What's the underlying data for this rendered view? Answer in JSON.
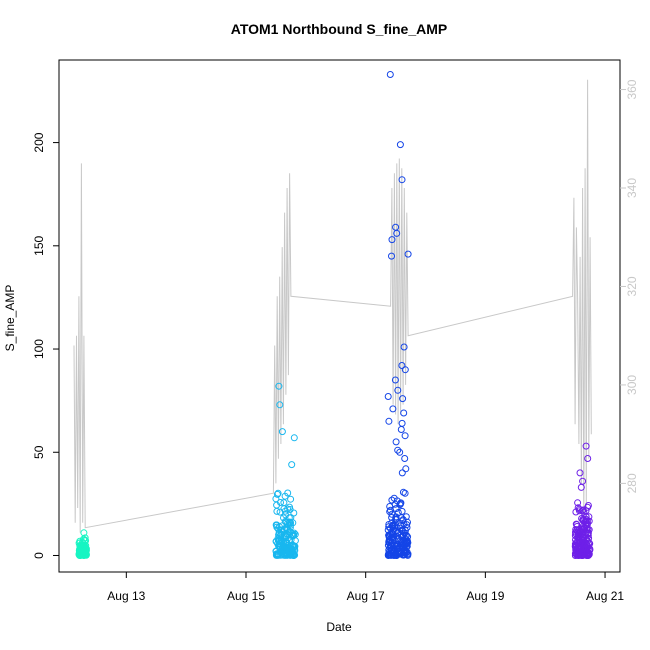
{
  "chart_data": {
    "type": "scatter",
    "title": "ATOM1 Northbound S_fine_AMP",
    "xlabel": "Date",
    "ylabel": "S_fine_AMP",
    "y2label": "",
    "xlim": [
      "2021-08-11T21:00",
      "2021-08-21T06:00"
    ],
    "ylim": [
      -8,
      240
    ],
    "y2lim": [
      262,
      366
    ],
    "x_ticks": [
      {
        "date": "2021-08-13",
        "label": "Aug 13"
      },
      {
        "date": "2021-08-15",
        "label": "Aug 15"
      },
      {
        "date": "2021-08-17",
        "label": "Aug 17"
      },
      {
        "date": "2021-08-19",
        "label": "Aug 19"
      },
      {
        "date": "2021-08-21",
        "label": "Aug 21"
      }
    ],
    "y_ticks": [
      0,
      50,
      100,
      150,
      200
    ],
    "y2_ticks": [
      280,
      300,
      320,
      340,
      360
    ],
    "y2_color": "#c8c8c8",
    "line_color": "#c8c8c8",
    "grid": false,
    "legend": "none",
    "clusters": [
      {
        "start": "2021-08-12T05:00",
        "end": "2021-08-12T08:00",
        "color": "#17f5c3",
        "ymin": 0,
        "ymax": 10,
        "extra": [
          11
        ]
      },
      {
        "start": "2021-08-15T12:00",
        "end": "2021-08-15T20:00",
        "color": "#19b7ef",
        "ymin": 0,
        "ymax": 33,
        "extra": [
          44,
          57,
          60,
          73,
          82
        ]
      },
      {
        "start": "2021-08-17T09:00",
        "end": "2021-08-17T17:00",
        "color": "#1445e7",
        "ymin": 0,
        "ymax": 33,
        "extra": [
          233,
          199,
          182,
          159,
          156,
          153,
          146,
          145,
          101,
          92,
          90,
          85,
          80,
          77,
          76,
          71,
          69,
          65,
          64,
          61,
          58,
          55,
          51,
          50,
          47,
          42,
          40
        ]
      },
      {
        "start": "2021-08-20T12:00",
        "end": "2021-08-20T18:00",
        "color": "#6e20e8",
        "ymin": 0,
        "ymax": 30,
        "extra": [
          33,
          36,
          40,
          47,
          53
        ]
      }
    ],
    "temperature_line": [
      {
        "x": "2021-08-12T03:00",
        "y": 308
      },
      {
        "x": "2021-08-12T03:30",
        "y": 272
      },
      {
        "x": "2021-08-12T04:00",
        "y": 310
      },
      {
        "x": "2021-08-12T04:30",
        "y": 275
      },
      {
        "x": "2021-08-12T05:00",
        "y": 318
      },
      {
        "x": "2021-08-12T05:30",
        "y": 270
      },
      {
        "x": "2021-08-12T06:00",
        "y": 345
      },
      {
        "x": "2021-08-12T06:30",
        "y": 272
      },
      {
        "x": "2021-08-12T07:00",
        "y": 310
      },
      {
        "x": "2021-08-12T07:30",
        "y": 271
      },
      {
        "x": "2021-08-15T11:00",
        "y": 278
      },
      {
        "x": "2021-08-15T11:30",
        "y": 308
      },
      {
        "x": "2021-08-15T12:00",
        "y": 280
      },
      {
        "x": "2021-08-15T12:30",
        "y": 318
      },
      {
        "x": "2021-08-15T13:00",
        "y": 285
      },
      {
        "x": "2021-08-15T13:30",
        "y": 322
      },
      {
        "x": "2021-08-15T14:00",
        "y": 288
      },
      {
        "x": "2021-08-15T14:30",
        "y": 328
      },
      {
        "x": "2021-08-15T15:00",
        "y": 292
      },
      {
        "x": "2021-08-15T15:30",
        "y": 335
      },
      {
        "x": "2021-08-15T16:00",
        "y": 298
      },
      {
        "x": "2021-08-15T16:30",
        "y": 340
      },
      {
        "x": "2021-08-15T17:00",
        "y": 302
      },
      {
        "x": "2021-08-15T17:30",
        "y": 343
      },
      {
        "x": "2021-08-15T18:00",
        "y": 318
      },
      {
        "x": "2021-08-17T10:00",
        "y": 316
      },
      {
        "x": "2021-08-17T10:30",
        "y": 340
      },
      {
        "x": "2021-08-17T11:00",
        "y": 296
      },
      {
        "x": "2021-08-17T11:30",
        "y": 343
      },
      {
        "x": "2021-08-17T12:00",
        "y": 294
      },
      {
        "x": "2021-08-17T12:30",
        "y": 345
      },
      {
        "x": "2021-08-17T13:00",
        "y": 292
      },
      {
        "x": "2021-08-17T13:30",
        "y": 346
      },
      {
        "x": "2021-08-17T14:00",
        "y": 294
      },
      {
        "x": "2021-08-17T14:30",
        "y": 344
      },
      {
        "x": "2021-08-17T15:00",
        "y": 296
      },
      {
        "x": "2021-08-17T15:30",
        "y": 340
      },
      {
        "x": "2021-08-17T16:00",
        "y": 300
      },
      {
        "x": "2021-08-17T16:30",
        "y": 335
      },
      {
        "x": "2021-08-17T17:00",
        "y": 310
      },
      {
        "x": "2021-08-20T11:00",
        "y": 318
      },
      {
        "x": "2021-08-20T11:30",
        "y": 338
      },
      {
        "x": "2021-08-20T12:00",
        "y": 292
      },
      {
        "x": "2021-08-20T12:30",
        "y": 332
      },
      {
        "x": "2021-08-20T13:00",
        "y": 318
      },
      {
        "x": "2021-08-20T13:30",
        "y": 288
      },
      {
        "x": "2021-08-20T14:00",
        "y": 326
      },
      {
        "x": "2021-08-20T14:30",
        "y": 280
      },
      {
        "x": "2021-08-20T15:00",
        "y": 340
      },
      {
        "x": "2021-08-20T15:30",
        "y": 272
      },
      {
        "x": "2021-08-20T16:00",
        "y": 344
      },
      {
        "x": "2021-08-20T16:30",
        "y": 275
      },
      {
        "x": "2021-08-20T17:00",
        "y": 362
      },
      {
        "x": "2021-08-20T17:30",
        "y": 285
      },
      {
        "x": "2021-08-20T18:00",
        "y": 330
      },
      {
        "x": "2021-08-20T18:30",
        "y": 290
      }
    ]
  }
}
